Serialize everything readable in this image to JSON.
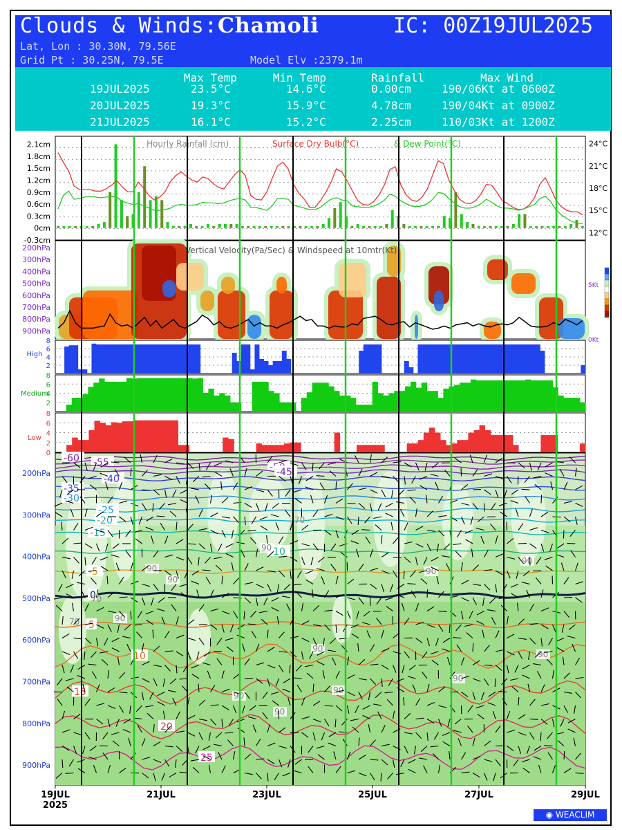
{
  "header": {
    "title_prefix": "Clouds & Winds:",
    "place": "Chamoli",
    "ic": "IC: 00Z19JUL2025",
    "latlon": "Lat, Lon : 30.30N, 79.56E",
    "gridpt": "Grid Pt  : 30.25N, 79.5E",
    "model_elv": "Model Elv :2379.1m"
  },
  "summary": {
    "headers": [
      "Max Temp",
      "Min Temp",
      "Rainfall",
      "Max Wind"
    ],
    "rows": [
      {
        "date": "19JUL2025",
        "max": "23.5°C",
        "min": "14.6°C",
        "rain": "0.00cm",
        "wind": "190/06Kt at 0600Z"
      },
      {
        "date": "20JUL2025",
        "max": "19.3°C",
        "min": "15.9°C",
        "rain": "4.78cm",
        "wind": "190/04Kt at 0900Z"
      },
      {
        "date": "21JUL2025",
        "max": "16.1°C",
        "min": "15.2°C",
        "rain": "2.25cm",
        "wind": "110/03Kt at 1200Z"
      }
    ]
  },
  "colors": {
    "header_bg": "#1f3cf5",
    "summary_bg": "#00c9c9",
    "rain_bar": "#22cc22",
    "rain_bar_dark": "#6b8e23",
    "drybulb": "#ee3333",
    "dewpoint": "#22cc22",
    "wind_line": "#000000",
    "high_cloud": "#2244ee",
    "medium_cloud": "#11cc11",
    "low_cloud": "#ee3333",
    "day_line": "#22cc22"
  },
  "chart_data": [
    {
      "type": "bar",
      "panel": "rain_temp",
      "title": "Hourly Rainfall (cm)",
      "title2": "Surface Dry Bulb(°C)",
      "title3": "& Dew Point(°C)",
      "y_left_ticks": [
        "2.1cm",
        "1.8cm",
        "1.5cm",
        "1.2cm",
        "0.9cm",
        "0.6cm",
        "0.3cm",
        "0cm",
        "-0.3cm"
      ],
      "y_right_ticks": [
        "24°C",
        "21°C",
        "18°C",
        "15°C",
        "12°C"
      ],
      "ylim_left": [
        -0.3,
        2.3
      ],
      "ylim_right": [
        11,
        25
      ],
      "rain": [
        0.05,
        0.05,
        0.05,
        0.05,
        0.05,
        0.05,
        0.05,
        0.1,
        0.15,
        0.9,
        2.1,
        0.7,
        0.3,
        0.35,
        0.9,
        1.55,
        0.7,
        0.8,
        0.7,
        0.15,
        0.05,
        0.05,
        0.05,
        0.1,
        0.05,
        0.05,
        0.1,
        0.05,
        0.1,
        0.1,
        0.1,
        0.1,
        0.05,
        0.05,
        0.05,
        0.05,
        0.05,
        0.05,
        0.05,
        0.05,
        0.05,
        0.05,
        0.05,
        0.05,
        0.05,
        0.05,
        0.1,
        0.25,
        0.5,
        0.65,
        0.3,
        0.05,
        0.1,
        0.05,
        0.05,
        0.05,
        0.05,
        0.1,
        0.45,
        0.3,
        0.1,
        0.05,
        0.05,
        0.05,
        0.05,
        0.05,
        0.05,
        0.3,
        0.25,
        0.9,
        0.35,
        0.15,
        0.1,
        0.05,
        0.05,
        0.05,
        0.05,
        0.05,
        0.05,
        0.1,
        0.35,
        0.35,
        0.05,
        0.05,
        0.05,
        0.05,
        0.05,
        0.05,
        0.05,
        0.1,
        0.2,
        0.05
      ],
      "drybulb": [
        22.8,
        21.5,
        20.3,
        18.3,
        17.8,
        17.8,
        17.8,
        17.6,
        17.6,
        17.9,
        18.4,
        19.0,
        18.2,
        17.5,
        17.5,
        18.8,
        18.0,
        17.0,
        16.4,
        16.8,
        17.5,
        18.9,
        19.7,
        20.2,
        19.6,
        19.1,
        18.8,
        19.5,
        19.3,
        18.6,
        18.1,
        17.9,
        18.9,
        19.8,
        20.5,
        19.7,
        17.0,
        16.5,
        16.4,
        17.5,
        19.3,
        21.0,
        21.5,
        20.6,
        18.5,
        17.3,
        16.5,
        15.4,
        15.4,
        16.3,
        17.4,
        18.8,
        20.6,
        20.2,
        19.0,
        17.6,
        16.3,
        15.8,
        15.7,
        16.2,
        17.1,
        18.5,
        20.5,
        20.9,
        18.5,
        17.1,
        16.4,
        16.2,
        16.8,
        17.9,
        19.8,
        21.7,
        21.3,
        19.1,
        17.7,
        16.5,
        16.0,
        15.9,
        16.3,
        17.2,
        18.5,
        18.4,
        17.4,
        16.3,
        15.9,
        15.4,
        15.1,
        15.2,
        15.7,
        16.7,
        18.5,
        19.4,
        18.0,
        16.4,
        15.5,
        15.0,
        14.8,
        14.8,
        14.4
      ],
      "dewpoint": [
        15.2,
        17.0,
        17.6,
        16.5,
        16.6,
        16.8,
        16.9,
        16.8,
        16.7,
        16.8,
        16.9,
        16.8,
        16.2,
        16.0,
        15.8,
        15.9,
        15.6,
        15.3,
        15.0,
        15.0,
        15.1,
        15.3,
        15.7,
        15.8,
        15.7,
        15.7,
        15.8,
        16.1,
        16.0,
        16.0,
        15.9,
        16.0,
        16.3,
        16.5,
        16.6,
        16.4,
        15.4,
        15.4,
        15.2,
        15.0,
        15.6,
        16.6,
        16.6,
        16.5,
        15.7,
        15.5,
        15.3,
        15.1,
        15.1,
        15.4,
        16.0,
        16.5,
        16.7,
        16.4,
        16.3,
        15.6,
        15.5,
        15.4,
        15.4,
        15.6,
        15.9,
        16.4,
        17.2,
        16.9,
        16.3,
        15.9,
        15.6,
        15.5,
        15.6,
        15.9,
        16.5,
        17.4,
        17.3,
        16.6,
        16.0,
        15.5,
        15.3,
        15.3,
        15.5,
        15.9,
        16.5,
        16.1,
        15.6,
        15.3,
        15.3,
        15.2,
        15.0,
        15.2,
        15.5,
        15.8,
        16.6,
        16.9,
        16.2,
        15.1,
        14.4,
        13.9,
        13.5,
        13.3,
        13.2
      ]
    },
    {
      "type": "heatmap",
      "panel": "vertical_velocity",
      "title": "Vertical Velocity(Pa/Sec) & Windspeed at 10mtr(Kt)",
      "y_ticks": [
        "200hPa",
        "300hPa",
        "400hPa",
        "500hPa",
        "600hPa",
        "700hPa",
        "800hPa",
        "900hPa"
      ],
      "right_ticks": [
        "5Kt",
        "0Kt"
      ],
      "windspeed_kt": [
        1.0,
        1.5,
        2.6,
        1.5,
        1.0,
        1.0,
        1.0,
        1.1,
        1.2,
        2.3,
        1.5,
        1.2,
        1.3,
        1.0,
        1.5,
        2.0,
        1.2,
        1.7,
        1.0,
        1.4,
        1.8,
        1.2,
        1.0,
        1.3,
        1.6,
        2.2,
        1.9,
        1.3,
        1.6,
        1.1,
        1.0,
        1.2,
        1.5,
        1.8,
        1.2,
        1.5,
        1.2,
        1.2,
        1.0,
        1.3,
        1.5,
        1.8,
        2.1,
        1.7,
        1.8,
        1.2,
        1.2,
        1.0,
        1.2,
        1.1,
        1.1,
        1.4,
        1.3,
        1.9,
        2.0,
        2.1,
        1.8,
        1.4,
        1.3,
        1.5,
        1.6,
        1.1,
        1.5,
        1.3,
        1.1,
        0.9,
        1.0,
        1.2,
        1.0,
        1.3,
        1.4,
        1.5,
        1.2,
        1.4,
        1.2,
        1.1,
        1.3,
        1.4,
        1.3,
        1.5,
        2.0,
        1.6,
        1.2,
        1.1,
        1.1,
        1.2,
        1.5,
        1.3,
        1.8,
        1.6,
        1.3,
        1.7
      ]
    },
    {
      "type": "bar",
      "panel": "high_cloud",
      "label": "High",
      "y_ticks": [
        "8",
        "6",
        "4",
        "2"
      ],
      "ylim": [
        0,
        8
      ],
      "values": [
        0,
        0,
        6.5,
        6.8,
        6.8,
        1,
        1,
        0,
        7.2,
        7,
        7,
        7,
        7,
        7,
        7,
        7,
        7,
        7,
        7,
        7,
        7,
        7,
        7,
        7,
        7,
        7,
        7,
        7,
        7,
        7,
        7,
        7,
        0,
        0,
        0,
        0,
        0,
        0,
        0,
        5,
        3,
        7,
        7,
        1,
        7,
        3.5,
        3,
        2,
        3,
        3,
        5.5,
        3.5,
        0,
        0,
        0,
        0,
        0,
        0,
        0,
        0,
        0,
        0,
        0,
        0,
        0,
        0,
        0,
        5.5,
        7,
        7,
        7,
        7,
        0,
        0,
        0,
        0,
        0,
        3,
        1.5,
        0,
        7,
        7,
        7,
        7,
        7,
        7,
        7,
        7,
        7,
        7,
        7,
        7,
        7,
        7,
        7,
        7,
        7,
        7,
        7,
        7,
        7,
        7,
        7,
        7,
        7,
        7,
        7,
        5.5,
        0,
        0,
        0,
        0,
        0,
        0,
        0,
        0,
        2
      ]
    },
    {
      "type": "bar",
      "panel": "medium_cloud",
      "label": "Medium",
      "y_ticks": [
        "8",
        "6",
        "4",
        "2"
      ],
      "ylim": [
        0,
        8
      ],
      "values": [
        0,
        0,
        1.5,
        3,
        3,
        3.8,
        5.4,
        6.3,
        7.2,
        6.5,
        6.5,
        6.5,
        6.5,
        7.3,
        7.2,
        7.3,
        7.3,
        7.3,
        7.3,
        7.3,
        7.3,
        7.3,
        7.3,
        7.3,
        7.3,
        7.2,
        7.3,
        4.1,
        5,
        3.5,
        4,
        3.5,
        2,
        2,
        0,
        0,
        6.5,
        6.5,
        6.5,
        4.5,
        4,
        2,
        2,
        2,
        0,
        3,
        4.2,
        6.3,
        6.3,
        6.3,
        5.5,
        4.5,
        3.5,
        3.5,
        3,
        1.5,
        1.5,
        1.5,
        6.5,
        4,
        3.5,
        4,
        4.5,
        4.5,
        5.5,
        6.5,
        5.2,
        6.3,
        4.5,
        4.5,
        3,
        5,
        5.5,
        5.8,
        6.3,
        6.3,
        7,
        6.8,
        6.8,
        6.8,
        6.8,
        6.8,
        6.8,
        6.8,
        6.8,
        6.8,
        7,
        6.8,
        6.8,
        6.8,
        6.8,
        5.3,
        3.5,
        3,
        3,
        3,
        2
      ]
    },
    {
      "type": "bar",
      "panel": "low_cloud",
      "label": "Low",
      "y_ticks": [
        "8",
        "6",
        "4",
        "2",
        "0"
      ],
      "ylim": [
        0,
        8
      ],
      "values": [
        0,
        0,
        1.5,
        3,
        2.5,
        2.5,
        4.5,
        6.4,
        6,
        5.5,
        6.1,
        6,
        6.3,
        6.3,
        6.5,
        6.5,
        6.5,
        6.5,
        6.5,
        6.5,
        6.5,
        6.5,
        1.5,
        1.5,
        0,
        0,
        0,
        0,
        0,
        0,
        3,
        2.7,
        0,
        0,
        0,
        0,
        1.8,
        1.5,
        1.5,
        1.5,
        1.5,
        1.8,
        2,
        2,
        0,
        0,
        0,
        0,
        0,
        0,
        4,
        0,
        0,
        0,
        1.5,
        1.5,
        1.5,
        1.5,
        1.5,
        0,
        0,
        0,
        0,
        1.8,
        1.8,
        2.5,
        4,
        5,
        4,
        2.5,
        1.5,
        1.8,
        2.5,
        2.5,
        4,
        4.5,
        5.5,
        4.5,
        3.5,
        3.5,
        3.5,
        3.5,
        1.5,
        0,
        0,
        0,
        0,
        3.5,
        3.5,
        3.5,
        0,
        0,
        0,
        0,
        1.8
      ]
    },
    {
      "type": "heatmap",
      "panel": "rh_temp_wind",
      "y_ticks": [
        "200hPa",
        "300hPa",
        "400hPa",
        "500hPa",
        "600hPa",
        "700hPa",
        "800hPa",
        "900hPa"
      ],
      "x_ticks": [
        "19JUL",
        "21JUL",
        "23JUL",
        "25JUL",
        "27JUL",
        "29JUL"
      ],
      "x_year": "2025",
      "temperature_contours": [
        "-60",
        "-55",
        "-50",
        "-45",
        "-40",
        "-35",
        "-30",
        "-25",
        "-20",
        "-15",
        "-10",
        "-5",
        "0",
        "5",
        "10",
        "15",
        "20",
        "25"
      ],
      "rh_labels": [
        "70",
        "90"
      ]
    }
  ],
  "footer": {
    "logo": "WEACLIM"
  }
}
